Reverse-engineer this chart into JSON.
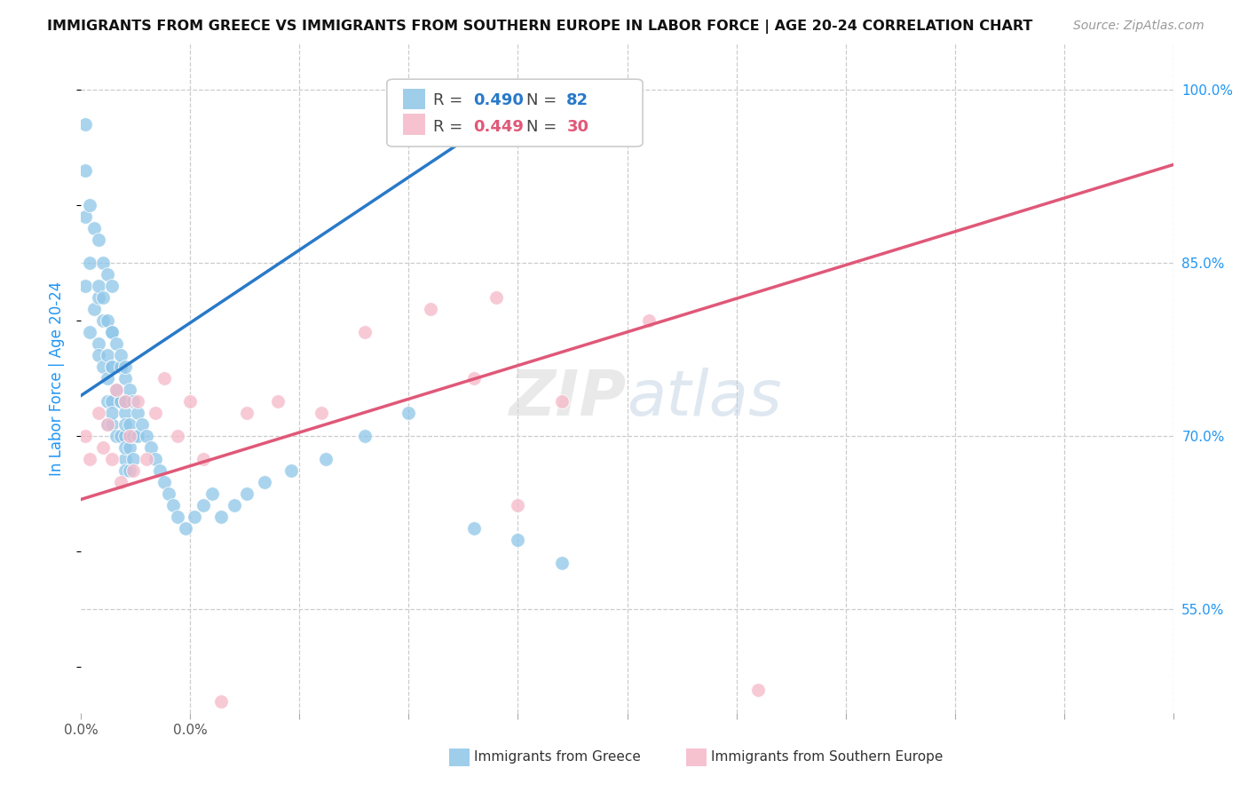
{
  "title": "IMMIGRANTS FROM GREECE VS IMMIGRANTS FROM SOUTHERN EUROPE IN LABOR FORCE | AGE 20-24 CORRELATION CHART",
  "source": "Source: ZipAtlas.com",
  "ylabel": "In Labor Force | Age 20-24",
  "xlim": [
    0.0,
    0.25
  ],
  "ylim": [
    0.46,
    1.04
  ],
  "xticks": [
    0.0,
    0.025,
    0.05,
    0.075,
    0.1,
    0.125,
    0.15,
    0.175,
    0.2,
    0.225,
    0.25
  ],
  "xticklabels_show": {
    "0.0": "0.0%"
  },
  "ytick_positions": [
    0.55,
    0.7,
    0.85,
    1.0
  ],
  "ytick_labels": [
    "55.0%",
    "70.0%",
    "85.0%",
    "100.0%"
  ],
  "R_blue": 0.49,
  "N_blue": 82,
  "R_pink": 0.449,
  "N_pink": 30,
  "blue_color": "#8ec6e8",
  "pink_color": "#f5b8c8",
  "blue_line_color": "#2979c8",
  "pink_line_color": "#e05878",
  "blue_line_x0": 0.0,
  "blue_line_y0": 0.735,
  "blue_line_x1": 0.107,
  "blue_line_y1": 1.005,
  "pink_line_x0": 0.0,
  "pink_line_y0": 0.645,
  "pink_line_x1": 0.25,
  "pink_line_y1": 0.935,
  "blue_scatter_x": [
    0.001,
    0.001,
    0.001,
    0.001,
    0.002,
    0.002,
    0.002,
    0.003,
    0.003,
    0.004,
    0.004,
    0.004,
    0.004,
    0.004,
    0.005,
    0.005,
    0.005,
    0.005,
    0.006,
    0.006,
    0.006,
    0.006,
    0.006,
    0.006,
    0.007,
    0.007,
    0.007,
    0.007,
    0.007,
    0.007,
    0.007,
    0.007,
    0.008,
    0.008,
    0.008,
    0.009,
    0.009,
    0.009,
    0.009,
    0.009,
    0.01,
    0.01,
    0.01,
    0.01,
    0.01,
    0.01,
    0.01,
    0.01,
    0.01,
    0.011,
    0.011,
    0.011,
    0.011,
    0.012,
    0.012,
    0.012,
    0.013,
    0.013,
    0.014,
    0.015,
    0.016,
    0.017,
    0.018,
    0.019,
    0.02,
    0.021,
    0.022,
    0.024,
    0.026,
    0.028,
    0.03,
    0.032,
    0.035,
    0.038,
    0.042,
    0.048,
    0.056,
    0.065,
    0.075,
    0.09,
    0.1,
    0.11
  ],
  "blue_scatter_y": [
    0.97,
    0.93,
    0.89,
    0.83,
    0.9,
    0.85,
    0.79,
    0.88,
    0.81,
    0.87,
    0.82,
    0.78,
    0.83,
    0.77,
    0.85,
    0.8,
    0.76,
    0.82,
    0.84,
    0.8,
    0.77,
    0.75,
    0.73,
    0.71,
    0.83,
    0.79,
    0.76,
    0.73,
    0.71,
    0.79,
    0.76,
    0.72,
    0.78,
    0.74,
    0.7,
    0.76,
    0.73,
    0.7,
    0.77,
    0.73,
    0.75,
    0.72,
    0.7,
    0.68,
    0.76,
    0.73,
    0.71,
    0.69,
    0.67,
    0.74,
    0.71,
    0.69,
    0.67,
    0.73,
    0.7,
    0.68,
    0.72,
    0.7,
    0.71,
    0.7,
    0.69,
    0.68,
    0.67,
    0.66,
    0.65,
    0.64,
    0.63,
    0.62,
    0.63,
    0.64,
    0.65,
    0.63,
    0.64,
    0.65,
    0.66,
    0.67,
    0.68,
    0.7,
    0.72,
    0.62,
    0.61,
    0.59
  ],
  "pink_scatter_x": [
    0.001,
    0.002,
    0.004,
    0.005,
    0.006,
    0.007,
    0.008,
    0.009,
    0.01,
    0.011,
    0.012,
    0.013,
    0.015,
    0.017,
    0.019,
    0.022,
    0.025,
    0.028,
    0.032,
    0.038,
    0.045,
    0.055,
    0.065,
    0.08,
    0.09,
    0.095,
    0.1,
    0.11,
    0.13,
    0.155
  ],
  "pink_scatter_y": [
    0.7,
    0.68,
    0.72,
    0.69,
    0.71,
    0.68,
    0.74,
    0.66,
    0.73,
    0.7,
    0.67,
    0.73,
    0.68,
    0.72,
    0.75,
    0.7,
    0.73,
    0.68,
    0.47,
    0.72,
    0.73,
    0.72,
    0.79,
    0.81,
    0.75,
    0.82,
    0.64,
    0.73,
    0.8,
    0.48
  ]
}
